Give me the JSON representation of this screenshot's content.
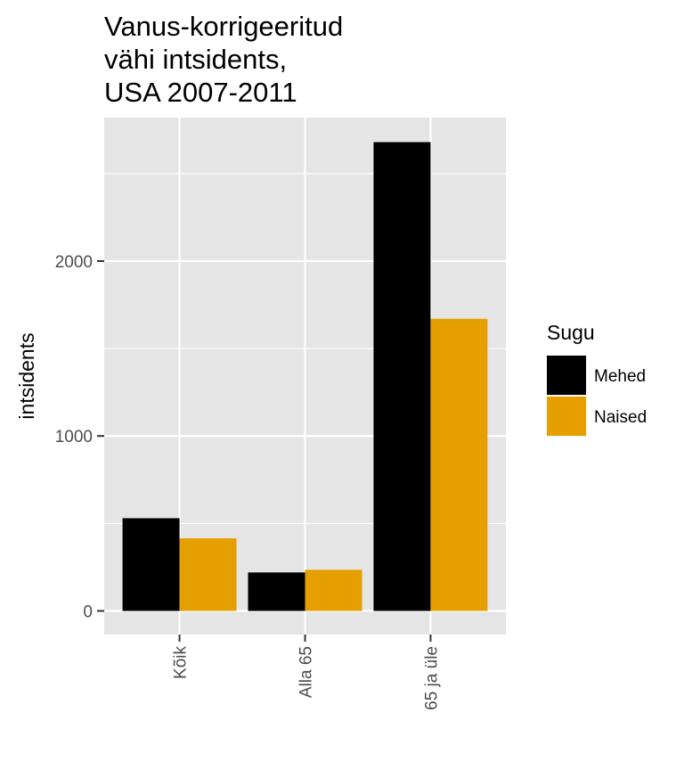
{
  "chart_data": {
    "type": "bar",
    "title_lines": [
      "Vanus-korrigeeritud",
      "vähi intsidents,",
      "USA 2007-2011"
    ],
    "xlabel": "",
    "ylabel": "intsidents",
    "categories": [
      "Kõik",
      "Alla 65",
      "65 ja üle"
    ],
    "series": [
      {
        "name": "Mehed",
        "color": "#000000",
        "values": [
          530,
          220,
          2680
        ]
      },
      {
        "name": "Naised",
        "color": "#E69F00",
        "values": [
          415,
          235,
          1670
        ]
      }
    ],
    "ylim": [
      -135,
      2820
    ],
    "y_ticks": [
      0,
      1000,
      2000
    ],
    "y_minor_ticks": [
      500,
      1500,
      2500
    ],
    "grid": true,
    "panel_background": "#e5e5e5",
    "legend": {
      "title": "Sugu",
      "position": "right"
    }
  }
}
